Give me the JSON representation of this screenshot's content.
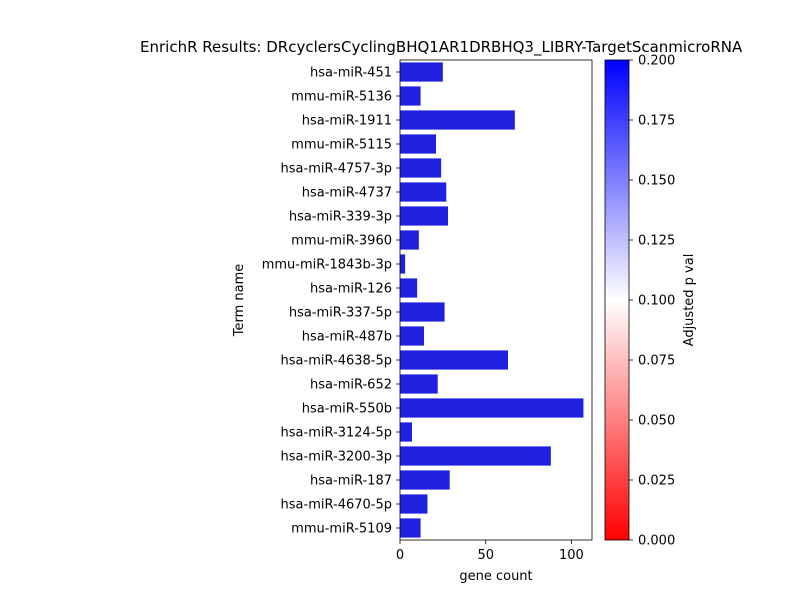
{
  "chart_data": {
    "type": "bar",
    "orientation": "horizontal",
    "title": "EnrichR Results: DRcyclersCyclingBHQ1AR1DRBHQ3_LIBRY-TargetScanmicroRNA",
    "xlabel": "gene count",
    "ylabel": "Term name",
    "xlim": [
      0,
      112
    ],
    "xticks": [
      0,
      50,
      100
    ],
    "grid": false,
    "categories": [
      "hsa-miR-451",
      "mmu-miR-5136",
      "hsa-miR-1911",
      "mmu-miR-5115",
      "hsa-miR-4757-3p",
      "hsa-miR-4737",
      "hsa-miR-339-3p",
      "mmu-miR-3960",
      "mmu-miR-1843b-3p",
      "hsa-miR-126",
      "hsa-miR-337-5p",
      "hsa-miR-487b",
      "hsa-miR-4638-5p",
      "hsa-miR-652",
      "hsa-miR-550b",
      "hsa-miR-3124-5p",
      "hsa-miR-3200-3p",
      "hsa-miR-187",
      "hsa-miR-4670-5p",
      "mmu-miR-5109"
    ],
    "values": [
      25,
      12,
      67,
      21,
      24,
      27,
      28,
      11,
      3,
      10,
      26,
      14,
      63,
      22,
      107,
      7,
      88,
      29,
      16,
      12
    ],
    "bar_color": "#2020e0",
    "colorbar": {
      "label": "Adjusted p val",
      "range": [
        0.0,
        0.2
      ],
      "ticks": [
        "0.000",
        "0.025",
        "0.050",
        "0.075",
        "0.100",
        "0.125",
        "0.150",
        "0.175",
        "0.200"
      ],
      "colormap": "bwr_r",
      "colors": [
        "#ff0000",
        "#ffffff",
        "#0000ff"
      ]
    }
  }
}
